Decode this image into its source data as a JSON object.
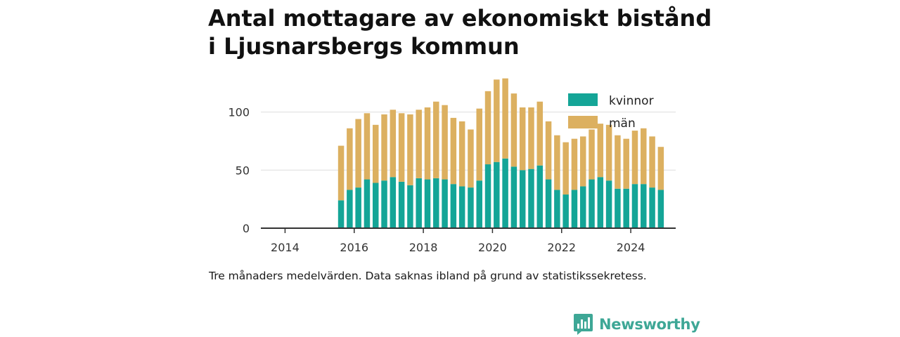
{
  "title": "Antal mottagare av ekonomiskt bistånd i Ljusnarsbergs kommun",
  "caption": "Tre månaders medelvärden. Data saknas ibland på grund av statistikssekretess.",
  "brand": {
    "name": "Newsworthy",
    "icon": "bar-chart-logo-icon"
  },
  "colors": {
    "kvinnor": "#14a597",
    "man": "#dcb060",
    "grid": "#dddddd",
    "axis": "#333333"
  },
  "chart_data": {
    "type": "bar",
    "stacked": true,
    "title": "Antal mottagare av ekonomiskt bistånd i Ljusnarsbergs kommun",
    "xlabel": "",
    "ylabel": "",
    "xlim": [
      2013.3,
      2025.3
    ],
    "ylim": [
      0,
      130
    ],
    "y_ticks": [
      0,
      50,
      100
    ],
    "x_ticks": [
      2014,
      2016,
      2018,
      2020,
      2022,
      2024
    ],
    "grid": "horizontal",
    "legend_position": "top-right",
    "x": [
      2015.62,
      2015.87,
      2016.12,
      2016.37,
      2016.62,
      2016.87,
      2017.12,
      2017.37,
      2017.62,
      2017.87,
      2018.12,
      2018.37,
      2018.62,
      2018.87,
      2019.12,
      2019.37,
      2019.62,
      2019.87,
      2020.12,
      2020.37,
      2020.62,
      2020.87,
      2021.12,
      2021.37,
      2021.62,
      2021.87,
      2022.12,
      2022.37,
      2022.62,
      2022.87,
      2023.12,
      2023.37,
      2023.62,
      2023.87,
      2024.12,
      2024.37,
      2024.62,
      2024.87
    ],
    "series": [
      {
        "name": "kvinnor",
        "values": [
          24,
          33,
          35,
          42,
          39,
          41,
          44,
          40,
          37,
          43,
          42,
          43,
          42,
          38,
          36,
          35,
          41,
          55,
          57,
          60,
          53,
          50,
          51,
          54,
          42,
          33,
          29,
          33,
          36,
          42,
          44,
          41,
          34,
          34,
          38,
          38,
          35,
          33
        ]
      },
      {
        "name": "män",
        "values": [
          47,
          53,
          59,
          57,
          50,
          57,
          58,
          59,
          61,
          59,
          62,
          66,
          64,
          57,
          56,
          50,
          62,
          63,
          71,
          69,
          63,
          54,
          53,
          55,
          50,
          47,
          45,
          44,
          43,
          43,
          46,
          48,
          46,
          43,
          46,
          48,
          44,
          37
        ]
      }
    ]
  }
}
